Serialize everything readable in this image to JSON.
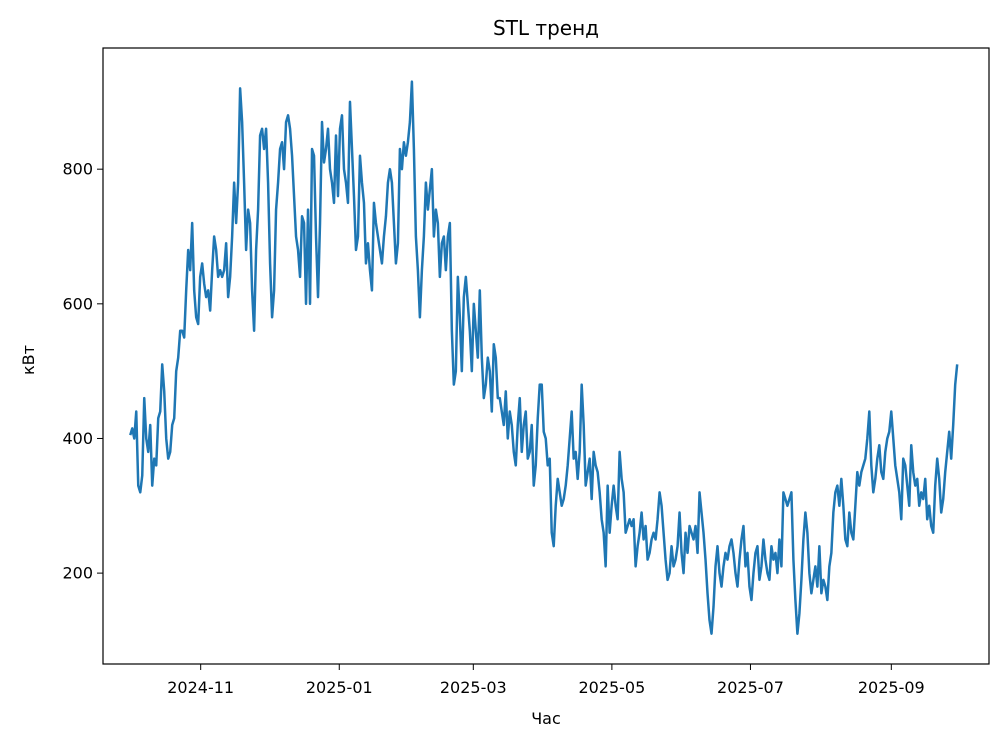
{
  "chart_data": {
    "type": "line",
    "title": "STL тренд",
    "xlabel": "Час",
    "ylabel": "кВт",
    "x_ticks": [
      "2024-11",
      "2025-01",
      "2025-03",
      "2025-05",
      "2025-07",
      "2025-09"
    ],
    "y_ticks": [
      200,
      400,
      600,
      800
    ],
    "xlim": [
      "2024-09-19",
      "2025-10-14"
    ],
    "ylim": [
      65,
      980
    ],
    "grid": false,
    "color": "#1f77b4",
    "x_start": "2024-10-01",
    "x_end": "2025-09-30",
    "series": [
      {
        "values": [
          405,
          415,
          400,
          440,
          330,
          320,
          345,
          460,
          400,
          380,
          420,
          330,
          370,
          360,
          430,
          440,
          510,
          470,
          400,
          370,
          380,
          420,
          430,
          500,
          520,
          560,
          560,
          550,
          620,
          680,
          650,
          720,
          620,
          580,
          570,
          640,
          660,
          630,
          610,
          620,
          590,
          650,
          700,
          680,
          640,
          650,
          640,
          650,
          690,
          610,
          640,
          700,
          780,
          720,
          780,
          920,
          870,
          780,
          680,
          740,
          720,
          620,
          560,
          680,
          740,
          850,
          860,
          830,
          860,
          780,
          660,
          580,
          620,
          740,
          780,
          830,
          840,
          800,
          870,
          880,
          860,
          820,
          760,
          700,
          680,
          640,
          730,
          720,
          600,
          740,
          600,
          830,
          820,
          700,
          610,
          720,
          870,
          810,
          830,
          860,
          800,
          780,
          750,
          850,
          760,
          860,
          880,
          800,
          780,
          750,
          900,
          830,
          760,
          680,
          700,
          820,
          780,
          750,
          660,
          690,
          650,
          620,
          750,
          720,
          700,
          680,
          660,
          700,
          730,
          780,
          800,
          780,
          720,
          660,
          690,
          830,
          800,
          840,
          820,
          840,
          870,
          930,
          830,
          700,
          650,
          580,
          650,
          700,
          780,
          740,
          770,
          800,
          700,
          740,
          720,
          640,
          690,
          700,
          650,
          700,
          720,
          560,
          480,
          500,
          640,
          580,
          500,
          610,
          640,
          600,
          560,
          500,
          600,
          560,
          520,
          620,
          520,
          460,
          480,
          520,
          500,
          440,
          540,
          520,
          460,
          460,
          440,
          420,
          470,
          400,
          440,
          420,
          380,
          360,
          420,
          460,
          380,
          420,
          440,
          370,
          380,
          420,
          330,
          360,
          430,
          480,
          480,
          410,
          400,
          360,
          370,
          260,
          240,
          300,
          340,
          320,
          300,
          310,
          330,
          360,
          400,
          440,
          370,
          380,
          340,
          380,
          480,
          420,
          330,
          350,
          370,
          310,
          380,
          360,
          350,
          320,
          280,
          260,
          210,
          330,
          260,
          300,
          330,
          300,
          280,
          380,
          340,
          320,
          260,
          270,
          280,
          270,
          280,
          210,
          240,
          260,
          290,
          250,
          270,
          220,
          230,
          250,
          260,
          250,
          280,
          320,
          300,
          260,
          220,
          190,
          200,
          240,
          210,
          220,
          240,
          290,
          230,
          200,
          260,
          230,
          270,
          260,
          250,
          270,
          230,
          320,
          290,
          260,
          220,
          170,
          130,
          110,
          150,
          210,
          240,
          200,
          180,
          210,
          230,
          220,
          240,
          250,
          230,
          200,
          180,
          220,
          250,
          270,
          210,
          230,
          180,
          160,
          200,
          230,
          240,
          190,
          210,
          250,
          220,
          200,
          190,
          240,
          220,
          230,
          200,
          250,
          210,
          320,
          310,
          300,
          310,
          320,
          220,
          160,
          110,
          140,
          190,
          250,
          290,
          260,
          200,
          170,
          190,
          210,
          180,
          240,
          170,
          190,
          180,
          160,
          210,
          230,
          290,
          320,
          330,
          300,
          340,
          300,
          250,
          240,
          290,
          260,
          250,
          300,
          350,
          330,
          350,
          360,
          370,
          400,
          440,
          360,
          320,
          340,
          370,
          390,
          350,
          340,
          380,
          400,
          410,
          440,
          400,
          360,
          340,
          320,
          280,
          370,
          360,
          330,
          300,
          390,
          350,
          330,
          340,
          300,
          320,
          310,
          340,
          280,
          300,
          270,
          260,
          330,
          370,
          340,
          290,
          310,
          350,
          380,
          410,
          370,
          420,
          480,
          510
        ]
      }
    ]
  }
}
